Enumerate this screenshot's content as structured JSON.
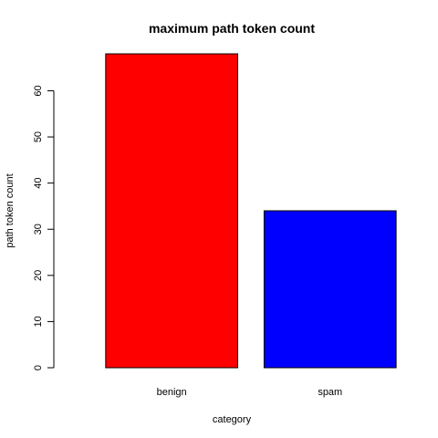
{
  "chart_data": {
    "type": "bar",
    "title": "maximum path token count",
    "xlabel": "category",
    "ylabel": "path token count",
    "categories": [
      "benign",
      "spam"
    ],
    "values": [
      68,
      34
    ],
    "colors": [
      "#ff0000",
      "#0000ff"
    ],
    "ylim": [
      0,
      68
    ],
    "yticks": [
      0,
      10,
      20,
      30,
      40,
      50,
      60
    ],
    "grid": false,
    "legend": "none"
  }
}
